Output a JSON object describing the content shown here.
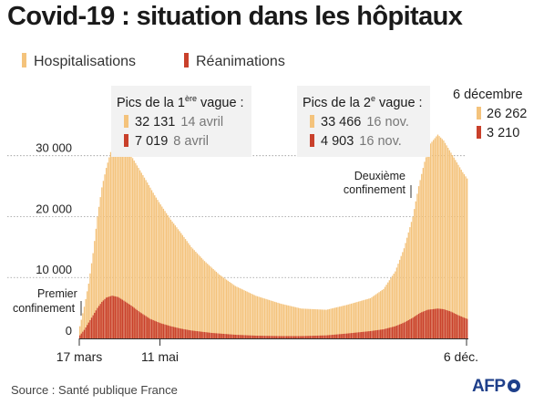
{
  "title": "Covid-19 : situation dans les hôpitaux",
  "legend": {
    "hosp_label": "Hospitalisations",
    "rea_label": "Réanimations"
  },
  "colors": {
    "hosp": "#f4c37c",
    "rea": "#c9402b",
    "text": "#222222",
    "grid": "#999999"
  },
  "peak1": {
    "heading": "Pics de la 1",
    "heading_sup": "ère",
    "heading_tail": " vague :",
    "hosp_value": "32 131",
    "hosp_date": "14 avril",
    "rea_value": "7 019",
    "rea_date": "8 avril"
  },
  "peak2": {
    "heading": "Pics de la 2",
    "heading_sup": "e",
    "heading_tail": " vague :",
    "hosp_value": "33 466",
    "hosp_date": "16 nov.",
    "rea_value": "4 903",
    "rea_date": "16 nov."
  },
  "latest": {
    "date": "6 décembre",
    "hosp_value": "26 262",
    "rea_value": "3 210"
  },
  "annotations": {
    "first_lockdown": [
      "Premier",
      "confinement"
    ],
    "second_lockdown": [
      "Deuxième",
      "confinement"
    ]
  },
  "source": "Source : Santé publique France",
  "agency": "AFP",
  "chart_data": {
    "type": "bar",
    "start_date": "2020-03-17",
    "end_date": "2020-12-06",
    "y_ticks": [
      {
        "value": 0,
        "label": "0"
      },
      {
        "value": 10000,
        "label": "10 000"
      },
      {
        "value": 20000,
        "label": "20 000"
      },
      {
        "value": 30000,
        "label": "30 000"
      }
    ],
    "ylim": [
      0,
      34000
    ],
    "grid": true,
    "x_ticks": [
      {
        "date": "2020-03-17",
        "label": "17 mars"
      },
      {
        "date": "2020-05-11",
        "label": "11 mai"
      },
      {
        "date": "2020-12-06",
        "label": "6 déc."
      }
    ],
    "series": [
      {
        "name": "Hospitalisations",
        "points": [
          [
            "2020-03-17",
            2000
          ],
          [
            "2020-03-20",
            5200
          ],
          [
            "2020-03-23",
            9000
          ],
          [
            "2020-03-26",
            14000
          ],
          [
            "2020-03-29",
            20000
          ],
          [
            "2020-04-01",
            24800
          ],
          [
            "2020-04-04",
            28000
          ],
          [
            "2020-04-07",
            30600
          ],
          [
            "2020-04-10",
            31700
          ],
          [
            "2020-04-14",
            32131
          ],
          [
            "2020-04-18",
            31000
          ],
          [
            "2020-04-22",
            29600
          ],
          [
            "2020-04-27",
            27600
          ],
          [
            "2020-05-02",
            25600
          ],
          [
            "2020-05-07",
            23500
          ],
          [
            "2020-05-11",
            22000
          ],
          [
            "2020-05-18",
            19500
          ],
          [
            "2020-05-25",
            17300
          ],
          [
            "2020-06-01",
            15000
          ],
          [
            "2020-06-10",
            12700
          ],
          [
            "2020-06-20",
            10500
          ],
          [
            "2020-07-01",
            8600
          ],
          [
            "2020-07-15",
            7000
          ],
          [
            "2020-08-01",
            5700
          ],
          [
            "2020-08-15",
            4900
          ],
          [
            "2020-09-01",
            4700
          ],
          [
            "2020-09-15",
            5500
          ],
          [
            "2020-10-01",
            6600
          ],
          [
            "2020-10-10",
            8100
          ],
          [
            "2020-10-18",
            11000
          ],
          [
            "2020-10-24",
            14800
          ],
          [
            "2020-10-30",
            20000
          ],
          [
            "2020-11-03",
            25000
          ],
          [
            "2020-11-07",
            29000
          ],
          [
            "2020-11-11",
            32000
          ],
          [
            "2020-11-16",
            33466
          ],
          [
            "2020-11-20",
            32500
          ],
          [
            "2020-11-25",
            30500
          ],
          [
            "2020-11-30",
            28500
          ],
          [
            "2020-12-03",
            27300
          ],
          [
            "2020-12-06",
            26262
          ]
        ]
      },
      {
        "name": "Réanimations",
        "points": [
          [
            "2020-03-17",
            500
          ],
          [
            "2020-03-20",
            1400
          ],
          [
            "2020-03-23",
            2600
          ],
          [
            "2020-03-26",
            3800
          ],
          [
            "2020-03-29",
            5000
          ],
          [
            "2020-04-01",
            6000
          ],
          [
            "2020-04-04",
            6700
          ],
          [
            "2020-04-08",
            7019
          ],
          [
            "2020-04-12",
            6800
          ],
          [
            "2020-04-16",
            6200
          ],
          [
            "2020-04-21",
            5400
          ],
          [
            "2020-04-27",
            4300
          ],
          [
            "2020-05-04",
            3200
          ],
          [
            "2020-05-11",
            2500
          ],
          [
            "2020-05-18",
            2000
          ],
          [
            "2020-05-25",
            1600
          ],
          [
            "2020-06-01",
            1300
          ],
          [
            "2020-06-15",
            900
          ],
          [
            "2020-07-01",
            600
          ],
          [
            "2020-07-15",
            450
          ],
          [
            "2020-08-01",
            380
          ],
          [
            "2020-08-15",
            380
          ],
          [
            "2020-09-01",
            500
          ],
          [
            "2020-09-15",
            800
          ],
          [
            "2020-10-01",
            1200
          ],
          [
            "2020-10-10",
            1500
          ],
          [
            "2020-10-18",
            2000
          ],
          [
            "2020-10-24",
            2600
          ],
          [
            "2020-10-30",
            3400
          ],
          [
            "2020-11-04",
            4200
          ],
          [
            "2020-11-09",
            4700
          ],
          [
            "2020-11-16",
            4903
          ],
          [
            "2020-11-20",
            4800
          ],
          [
            "2020-11-25",
            4400
          ],
          [
            "2020-11-30",
            3800
          ],
          [
            "2020-12-03",
            3500
          ],
          [
            "2020-12-06",
            3210
          ]
        ]
      }
    ],
    "events": [
      {
        "date": "2020-03-17",
        "name": "Premier confinement"
      },
      {
        "date": "2020-10-30",
        "name": "Deuxième confinement"
      }
    ]
  }
}
